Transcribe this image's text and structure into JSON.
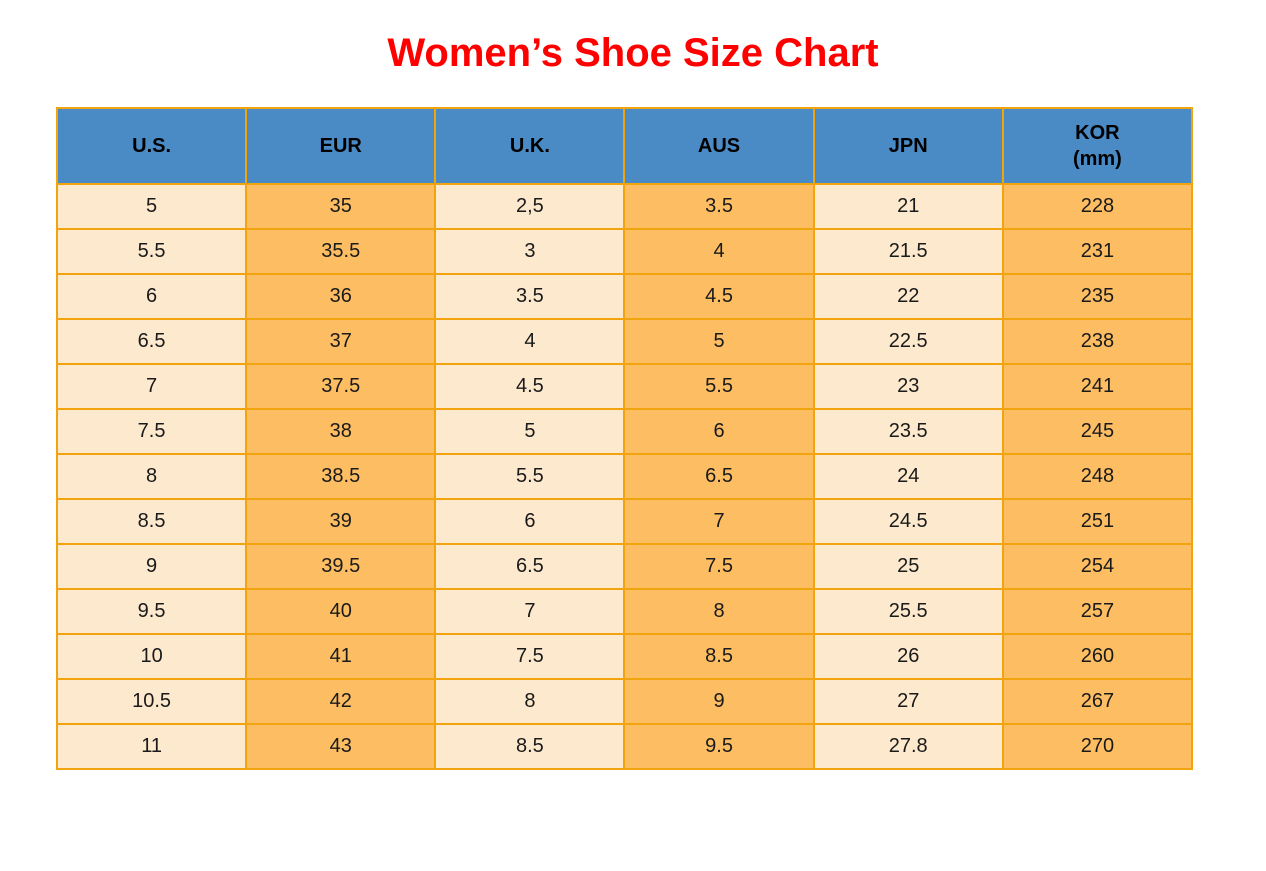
{
  "title": {
    "text": "Women’s Shoe Size Chart",
    "color": "#ff0000"
  },
  "chart_data": {
    "type": "table",
    "title": "Women’s Shoe Size Chart",
    "columns": [
      "U.S.",
      "EUR",
      "U.K.",
      "AUS",
      "JPN",
      "KOR (mm)"
    ],
    "rows": [
      [
        "5",
        "35",
        "2,5",
        "3.5",
        "21",
        "228"
      ],
      [
        "5.5",
        "35.5",
        "3",
        "4",
        "21.5",
        "231"
      ],
      [
        "6",
        "36",
        "3.5",
        "4.5",
        "22",
        "235"
      ],
      [
        "6.5",
        "37",
        "4",
        "5",
        "22.5",
        "238"
      ],
      [
        "7",
        "37.5",
        "4.5",
        "5.5",
        "23",
        "241"
      ],
      [
        "7.5",
        "38",
        "5",
        "6",
        "23.5",
        "245"
      ],
      [
        "8",
        "38.5",
        "5.5",
        "6.5",
        "24",
        "248"
      ],
      [
        "8.5",
        "39",
        "6",
        "7",
        "24.5",
        "251"
      ],
      [
        "9",
        "39.5",
        "6.5",
        "7.5",
        "25",
        "254"
      ],
      [
        "9.5",
        "40",
        "7",
        "8",
        "25.5",
        "257"
      ],
      [
        "10",
        "41",
        "7.5",
        "8.5",
        "26",
        "260"
      ],
      [
        "10.5",
        "42",
        "8",
        "9",
        "27",
        "267"
      ],
      [
        "11",
        "43",
        "8.5",
        "9.5",
        "27.8",
        "270"
      ]
    ]
  },
  "table": {
    "header": [
      {
        "key": "us",
        "line1": "U.S."
      },
      {
        "key": "eur",
        "line1": "EUR"
      },
      {
        "key": "uk",
        "line1": "U.K."
      },
      {
        "key": "aus",
        "line1": "AUS"
      },
      {
        "key": "jpn",
        "line1": "JPN"
      },
      {
        "key": "kor",
        "line1": "KOR",
        "line2": "(mm)"
      }
    ],
    "colors": {
      "header_bg": "#4a8ac5",
      "header_text": "#000000",
      "cell_light": "#fde9cd",
      "cell_orange": "#fcbd63",
      "border": "#f2a40e",
      "cell_text": "#1a1a1a"
    }
  }
}
